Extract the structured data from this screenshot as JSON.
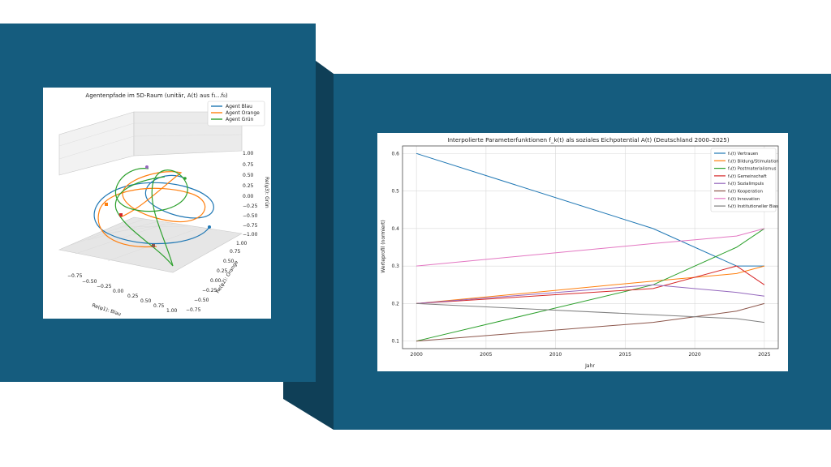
{
  "colors": {
    "panel": "#155c7e",
    "panel_shadow_dark": "#0f3f57",
    "panel_shadow_mid": "#12496a",
    "figure_bg": "#ffffff"
  },
  "chart_data": [
    {
      "type": "line3d",
      "title": "Agentenpfade im 5D-Raum (unitär, A(t) aus f₁...f₈)",
      "xlabel": "Re(ψ1): Blau",
      "ylabel": "Re(ψ2): Orange",
      "zlabel": "Re(ψ3): Grün",
      "xticks": [
        "−0.75",
        "−0.50",
        "−0.25",
        "0.00",
        "0.25",
        "0.50",
        "0.75",
        "1.00"
      ],
      "yticks": [
        "−0.75",
        "−0.50",
        "−0.25",
        "0.00",
        "0.25",
        "0.50",
        "0.75",
        "1.00"
      ],
      "zticks": [
        "−1.00",
        "−0.75",
        "−0.50",
        "−0.25",
        "0.00",
        "0.25",
        "0.50",
        "0.75",
        "1.00"
      ],
      "legend_position": "top-right",
      "series": [
        {
          "name": "Agent Blau",
          "color": "#1f77b4"
        },
        {
          "name": "Agent Orange",
          "color": "#ff7f0e"
        },
        {
          "name": "Agent Grün",
          "color": "#2ca02c"
        }
      ]
    },
    {
      "type": "line",
      "title": "Interpolierte Parameterfunktionen f_k(t) als soziales Eichpotential A(t) (Deutschland 2000–2025)",
      "xlabel": "Jahr",
      "ylabel": "Werteprofil (normiert)",
      "xlim": [
        1999,
        2026
      ],
      "ylim": [
        0.08,
        0.62
      ],
      "xticks": [
        "2000",
        "2005",
        "2010",
        "2015",
        "2020",
        "2025"
      ],
      "yticks": [
        "0.1",
        "0.2",
        "0.3",
        "0.4",
        "0.5",
        "0.6"
      ],
      "grid": true,
      "legend_position": "top-right",
      "x": [
        2000,
        2017,
        2023,
        2025
      ],
      "series": [
        {
          "name": "f₁(t) Vertrauen",
          "color": "#1f77b4",
          "values": [
            0.6,
            0.4,
            0.3,
            0.3
          ]
        },
        {
          "name": "f₂(t) Bildung/Stimulation",
          "color": "#ff7f0e",
          "values": [
            0.2,
            0.26,
            0.28,
            0.3
          ]
        },
        {
          "name": "f₃(t) Postmaterialismus",
          "color": "#2ca02c",
          "values": [
            0.1,
            0.25,
            0.35,
            0.4
          ]
        },
        {
          "name": "f₄(t) Gemeinschaft",
          "color": "#d62728",
          "values": [
            0.2,
            0.24,
            0.3,
            0.25
          ]
        },
        {
          "name": "f₅(t) Sozialimpuls",
          "color": "#9467bd",
          "values": [
            0.2,
            0.25,
            0.23,
            0.22
          ]
        },
        {
          "name": "f₆(t) Kooperation",
          "color": "#8c564b",
          "values": [
            0.1,
            0.15,
            0.18,
            0.2
          ]
        },
        {
          "name": "f₇(t) Innovation",
          "color": "#e377c2",
          "values": [
            0.3,
            0.36,
            0.38,
            0.4
          ]
        },
        {
          "name": "f₈(t) Institutioneller Bias",
          "color": "#7f7f7f",
          "values": [
            0.2,
            0.17,
            0.16,
            0.15
          ]
        }
      ]
    }
  ]
}
